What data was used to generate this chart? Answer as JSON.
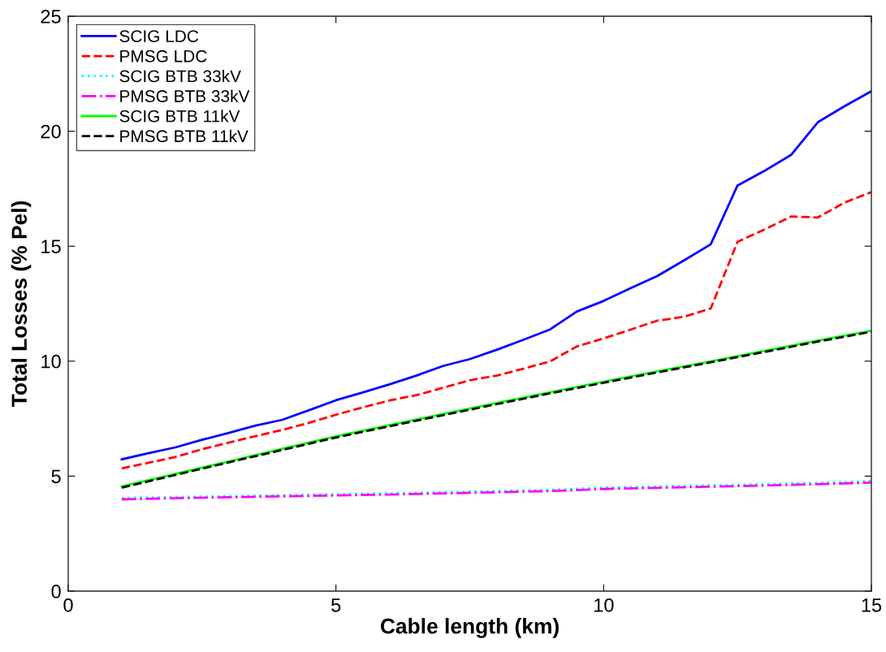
{
  "chart_data": {
    "type": "line",
    "xlabel": "Cable length (km)",
    "ylabel": "Total Losses (% Pel)",
    "x": [
      1,
      1.5,
      2,
      2.5,
      3,
      3.5,
      4,
      4.5,
      5,
      5.5,
      6,
      6.5,
      7,
      7.5,
      8,
      8.5,
      9,
      9.5,
      10,
      10.5,
      11,
      11.5,
      12,
      12.5,
      13,
      13.5,
      14,
      14.5,
      15
    ],
    "xlim": [
      0,
      15
    ],
    "xticks": [
      0,
      5,
      10,
      15
    ],
    "ylim": [
      0,
      25
    ],
    "yticks": [
      0,
      5,
      10,
      15,
      20,
      25
    ],
    "grid": false,
    "legend": "top left",
    "marker": "none",
    "series": [
      {
        "name": "SCIG LDC",
        "color": "#0000ff",
        "line_style": "solid",
        "values": [
          5.73,
          6.0,
          6.25,
          6.58,
          6.88,
          7.2,
          7.45,
          7.87,
          8.3,
          8.64,
          8.99,
          9.37,
          9.79,
          10.09,
          10.49,
          10.93,
          11.38,
          12.16,
          12.62,
          13.17,
          13.7,
          14.38,
          15.08,
          17.64,
          18.27,
          18.97,
          20.39,
          21.09,
          21.74
        ]
      },
      {
        "name": "PMSG LDC",
        "color": "#ff0000",
        "line_style": "dashed",
        "values": [
          5.34,
          5.58,
          5.83,
          6.17,
          6.46,
          6.74,
          7.01,
          7.32,
          7.67,
          7.99,
          8.29,
          8.52,
          8.84,
          9.17,
          9.37,
          9.67,
          9.99,
          10.64,
          10.99,
          11.37,
          11.76,
          11.93,
          12.29,
          15.19,
          15.72,
          16.29,
          16.25,
          16.9,
          17.35
        ]
      },
      {
        "name": "SCIG BTB 33kV",
        "color": "#00ffff",
        "line_style": "dotted",
        "x": [
          1,
          2,
          3,
          4,
          5,
          6,
          7,
          8,
          9,
          10,
          11,
          12,
          13,
          14,
          15
        ],
        "values": [
          4.05,
          4.09,
          4.13,
          4.17,
          4.21,
          4.25,
          4.3,
          4.35,
          4.4,
          4.5,
          4.55,
          4.6,
          4.65,
          4.71,
          4.78
        ]
      },
      {
        "name": "PMSG BTB 33kV",
        "color": "#ff00ff",
        "line_style": "dashdot",
        "x": [
          1,
          2,
          3,
          4,
          5,
          6,
          7,
          8,
          9,
          10,
          11,
          12,
          13,
          14,
          15
        ],
        "values": [
          3.99,
          4.04,
          4.08,
          4.12,
          4.16,
          4.2,
          4.25,
          4.3,
          4.35,
          4.44,
          4.49,
          4.54,
          4.59,
          4.65,
          4.72
        ]
      },
      {
        "name": "SCIG BTB 11kV",
        "color": "#00ff00",
        "line_style": "solid",
        "x": [
          1,
          2,
          3,
          4,
          5,
          6,
          7,
          8,
          9,
          10,
          11,
          12,
          13,
          14,
          15
        ],
        "values": [
          4.55,
          5.1,
          5.64,
          6.19,
          6.73,
          7.22,
          7.7,
          8.18,
          8.65,
          9.11,
          9.56,
          9.99,
          10.45,
          10.9,
          11.32
        ]
      },
      {
        "name": "PMSG BTB 11kV",
        "color": "#000000",
        "line_style": "dashed",
        "x": [
          1,
          2,
          3,
          4,
          5,
          6,
          7,
          8,
          9,
          10,
          11,
          12,
          13,
          14,
          15
        ],
        "values": [
          4.5,
          5.05,
          5.6,
          6.14,
          6.68,
          7.17,
          7.65,
          8.13,
          8.6,
          9.06,
          9.51,
          9.95,
          10.4,
          10.85,
          11.28
        ]
      }
    ]
  }
}
